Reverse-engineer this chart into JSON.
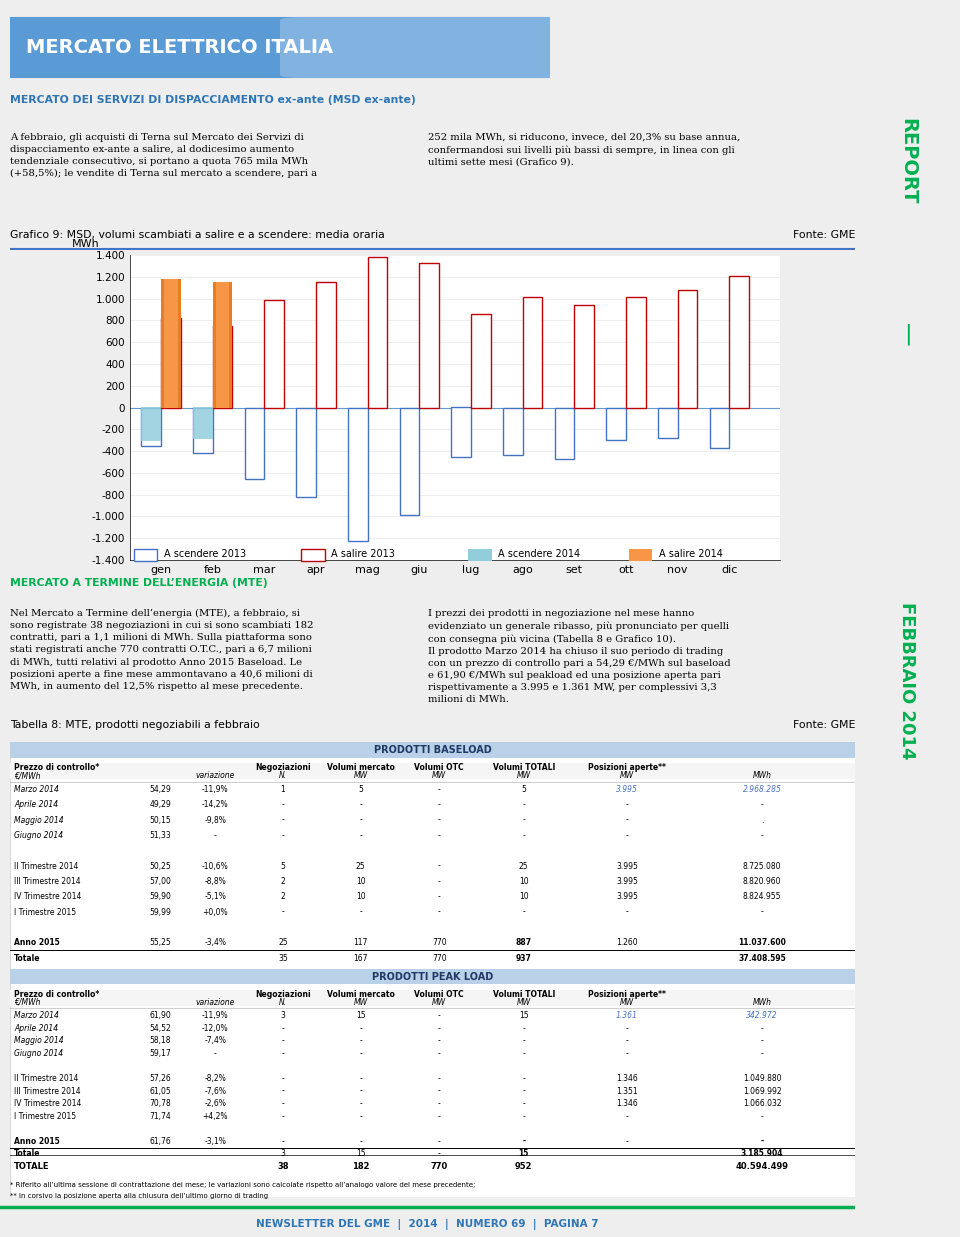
{
  "chart_title": "Grafico 9: MSD, volumi scambiati a salire e a scendere: media oraria",
  "fonte": "Fonte: GME",
  "main_title": "MERCATO ELETTRICO ITALIA",
  "section1_title": "MERCATO DEI SERVIZI DI DISPACCIAMENTO ex-ante (MSD ex-ante)",
  "section1_left": "A febbraio, gli acquisti di Terna sul Mercato dei Servizi di\ndispacciamento ex-ante a salire, al dodicesimo aumento\ntendenziale consecutivo, si portano a quota 765 mila MWh\n(+58,5%); le vendite di Terna sul mercato a scendere, pari a",
  "section1_right": "252 mila MWh, si riducono, invece, del 20,3% su base annua,\nconfermandosi sui livelli più bassi di sempre, in linea con gli\nultimi sette mesi (Grafico 9).",
  "months": [
    "gen",
    "feb",
    "mar",
    "apr",
    "mag",
    "giu",
    "lug",
    "ago",
    "set",
    "ott",
    "nov",
    "dic"
  ],
  "a_scendere_2013": [
    -350,
    -420,
    -660,
    -820,
    -1230,
    -990,
    -450,
    -440,
    -470,
    -300,
    -280,
    -370
  ],
  "a_salire_2013": [
    820,
    750,
    990,
    1150,
    1380,
    1330,
    860,
    1010,
    940,
    1010,
    1080,
    1210
  ],
  "a_scendere_2014": [
    -310,
    -290,
    null,
    null,
    null,
    null,
    null,
    null,
    null,
    null,
    null,
    null
  ],
  "a_salire_2014": [
    1180,
    1150,
    null,
    null,
    null,
    null,
    null,
    null,
    null,
    null,
    null,
    null
  ],
  "y_ticks": [
    -1400,
    -1200,
    -1000,
    -800,
    -600,
    -400,
    -200,
    0,
    200,
    400,
    600,
    800,
    1000,
    1200,
    1400
  ],
  "y_label": "MWh",
  "section2_title": "MERCATO A TERMINE DELL’ENERGIA (MTE)",
  "section2_left": "Nel Mercato a Termine dell’energia (MTE), a febbraio, si\nsono registrate 38 negoziazioni in cui si sono scambiati 182\ncontratti, pari a 1,1 milioni di MWh. Sulla piattaforma sono\nstati registrati anche 770 contratti O.T.C., pari a 6,7 milioni\ndi MWh, tutti relativi al prodotto Anno 2015 Baseload. Le\nposizioni aperte a fine mese ammontavano a 40,6 milioni di\nMWh, in aumento del 12,5% rispetto al mese precedente.",
  "section2_right": "I prezzi dei prodotti in negoziazione nel mese hanno\nevidenziato un generale ribasso, più pronunciato per quelli\ncon consegna più vicina (Tabella 8 e Grafico 10).\nIl prodotto Marzo 2014 ha chiuso il suo periodo di trading\ncon un prezzo di controllo pari a 54,29 €/MWh sul baseload\ne 61,90 €/MWh sul peakload ed una posizione aperta pari\nrispettivamente a 3.995 e 1.361 MW, per complessivi 3,3\nmilioni di MWh.",
  "table_title": "Tabella 8: MTE, prodotti negoziabili a febbraio",
  "table_fonte": "Fonte: GME",
  "footer": "NEWSLETTER DEL GME  |  2014  |  NUMERO 69  |  PAGINA 7",
  "color_scendere_2013": "#4472C4",
  "color_salire_2013": "#C00000",
  "color_scendere_2014": "#92CDDC",
  "color_salire_2014": "#F79646",
  "color_salire_2014_dark": "#E26B0A",
  "section_title_color": "#2E75B6",
  "mte_title_color": "#00B050",
  "sidebar_text_color": "#00B050",
  "main_bg": "#EEEEEE",
  "sidebar_bg": "#DDDDDD",
  "header_banner_color": "#4472C4",
  "table_header_color": "#B8D0E8",
  "footer_line_color": "#00B050",
  "footer_text_color": "#2E75B6"
}
